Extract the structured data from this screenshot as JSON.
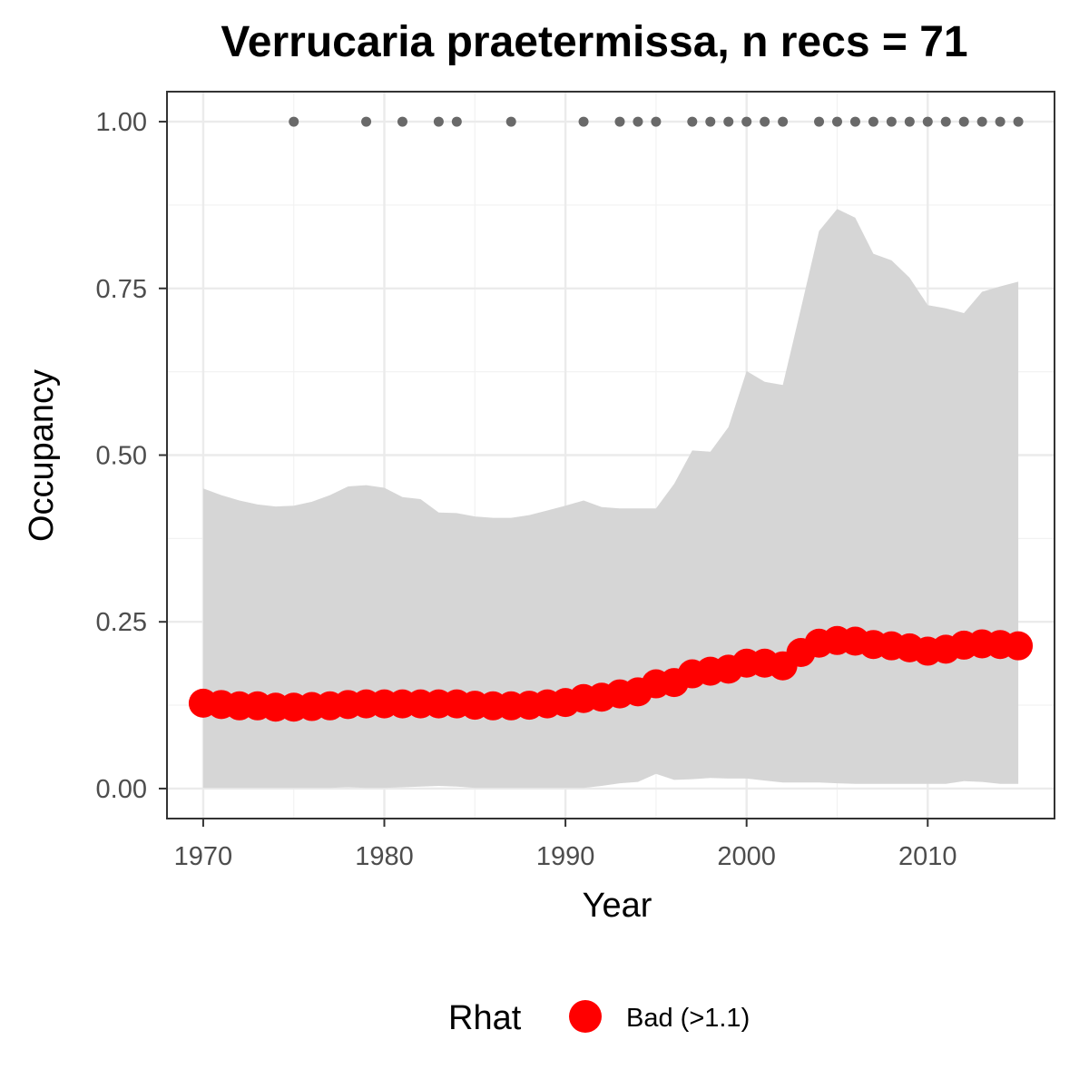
{
  "chart_data": {
    "type": "line",
    "title": "Verrucaria praetermissa, n recs = 71",
    "xlabel": "Year",
    "ylabel": "Occupancy",
    "xlim": [
      1968,
      2017
    ],
    "ylim": [
      -0.045,
      1.045
    ],
    "x_ticks": [
      1970,
      1980,
      1990,
      2000,
      2010
    ],
    "x_tick_labels": [
      "1970",
      "1980",
      "1990",
      "2000",
      "2010"
    ],
    "y_ticks": [
      0,
      0.25,
      0.5,
      0.75,
      1
    ],
    "y_tick_labels": [
      "0.00",
      "0.25",
      "0.50",
      "0.75",
      "1.00"
    ],
    "grid": true,
    "series": [
      {
        "name": "Occupancy",
        "color": "#ff0000",
        "x": [
          1970,
          1971,
          1972,
          1973,
          1974,
          1975,
          1976,
          1977,
          1978,
          1979,
          1980,
          1981,
          1982,
          1983,
          1984,
          1985,
          1986,
          1987,
          1988,
          1989,
          1990,
          1991,
          1992,
          1993,
          1994,
          1995,
          1996,
          1997,
          1998,
          1999,
          2000,
          2001,
          2002,
          2003,
          2004,
          2005,
          2006,
          2007,
          2008,
          2009,
          2010,
          2011,
          2012,
          2013,
          2014,
          2015
        ],
        "y": [
          0.128,
          0.126,
          0.124,
          0.124,
          0.122,
          0.122,
          0.123,
          0.124,
          0.126,
          0.127,
          0.127,
          0.127,
          0.127,
          0.127,
          0.127,
          0.125,
          0.124,
          0.124,
          0.125,
          0.127,
          0.129,
          0.135,
          0.137,
          0.142,
          0.145,
          0.157,
          0.159,
          0.172,
          0.176,
          0.179,
          0.188,
          0.188,
          0.184,
          0.204,
          0.218,
          0.222,
          0.221,
          0.216,
          0.214,
          0.211,
          0.206,
          0.209,
          0.215,
          0.217,
          0.216,
          0.214
        ],
        "lower": [
          0.001,
          0.001,
          0.001,
          0.001,
          0.001,
          0.001,
          0.001,
          0.001,
          0.002,
          0.001,
          0.001,
          0.002,
          0.003,
          0.004,
          0.003,
          0.001,
          0.001,
          0.001,
          0.001,
          0.001,
          0.001,
          0.001,
          0.004,
          0.008,
          0.01,
          0.022,
          0.013,
          0.014,
          0.016,
          0.015,
          0.015,
          0.012,
          0.009,
          0.009,
          0.009,
          0.008,
          0.007,
          0.007,
          0.007,
          0.007,
          0.007,
          0.007,
          0.011,
          0.01,
          0.007,
          0.007
        ],
        "upper": [
          0.45,
          0.44,
          0.432,
          0.426,
          0.423,
          0.424,
          0.43,
          0.44,
          0.453,
          0.455,
          0.451,
          0.437,
          0.434,
          0.414,
          0.413,
          0.408,
          0.406,
          0.406,
          0.41,
          0.417,
          0.424,
          0.432,
          0.422,
          0.42,
          0.42,
          0.42,
          0.457,
          0.507,
          0.505,
          0.542,
          0.626,
          0.61,
          0.605,
          0.72,
          0.836,
          0.869,
          0.856,
          0.802,
          0.792,
          0.766,
          0.725,
          0.72,
          0.713,
          0.745,
          0.753,
          0.76
        ]
      }
    ],
    "records": {
      "y": 1,
      "color": "#696969",
      "years": [
        1975,
        1979,
        1981,
        1983,
        1984,
        1987,
        1991,
        1993,
        1994,
        1995,
        1997,
        1998,
        1999,
        2000,
        2001,
        2002,
        2004,
        2005,
        2006,
        2007,
        2008,
        2009,
        2010,
        2011,
        2012,
        2013,
        2014,
        2015
      ]
    },
    "legend": {
      "title": "Rhat",
      "placement": "bottom",
      "entries": [
        {
          "label": "Bad (>1.1)",
          "color": "#ff0000"
        }
      ]
    },
    "ribbon_color": "#d6d6d6"
  }
}
